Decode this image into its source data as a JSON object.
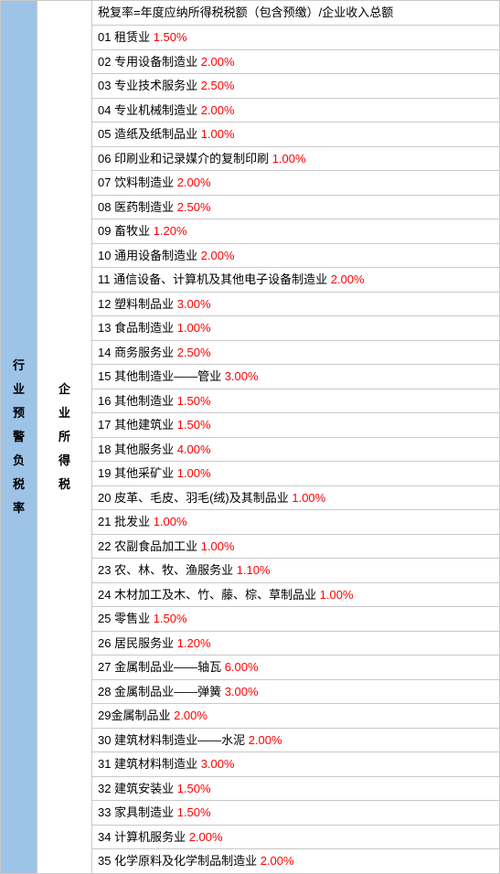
{
  "left_label": "行业预警负税率",
  "mid_label": "企业所得税",
  "header": "税复率=年度应纳所得税税额（包含预缴）/企业收入总额",
  "row_label_fontsize": 13,
  "vertical_label_fontsize": 13,
  "rate_color": "#ff0000",
  "text_color": "#000000",
  "left_bg": "#9dc3e6",
  "border_color": "#c9c9c9",
  "rows": [
    {
      "num": "01",
      "name": "租赁业",
      "rate": "1.50%"
    },
    {
      "num": "02",
      "name": "专用设备制造业",
      "rate": "2.00%"
    },
    {
      "num": "03",
      "name": "专业技术服务业",
      "rate": "2.50%"
    },
    {
      "num": "04",
      "name": "专业机械制造业",
      "rate": "2.00%"
    },
    {
      "num": "05",
      "name": "造纸及纸制品业",
      "rate": "1.00%"
    },
    {
      "num": "06",
      "name": "印刷业和记录媒介的复制印刷",
      "rate": "1.00%"
    },
    {
      "num": "07",
      "name": "饮料制造业",
      "rate": "2.00%"
    },
    {
      "num": "08",
      "name": "医药制造业",
      "rate": "2.50%"
    },
    {
      "num": "09",
      "name": "畜牧业",
      "rate": "1.20%"
    },
    {
      "num": "10",
      "name": "通用设备制造业",
      "rate": "2.00%"
    },
    {
      "num": "11",
      "name": "通信设备、计算机及其他电子设备制造业",
      "rate": "2.00%"
    },
    {
      "num": "12",
      "name": "塑料制品业",
      "rate": "3.00%"
    },
    {
      "num": "13",
      "name": "食品制造业",
      "rate": "1.00%"
    },
    {
      "num": "14",
      "name": "商务服务业",
      "rate": "2.50%"
    },
    {
      "num": "15",
      "name": "其他制造业——管业",
      "rate": "3.00%"
    },
    {
      "num": "16",
      "name": "其他制造业",
      "rate": "1.50%"
    },
    {
      "num": "17",
      "name": "其他建筑业",
      "rate": "1.50%"
    },
    {
      "num": "18",
      "name": "其他服务业",
      "rate": "4.00%"
    },
    {
      "num": "19",
      "name": "其他采矿业",
      "rate": "1.00%"
    },
    {
      "num": "20",
      "name": "皮革、毛皮、羽毛(绒)及其制品业",
      "rate": "1.00%"
    },
    {
      "num": "21",
      "name": "批发业",
      "rate": "1.00%"
    },
    {
      "num": "22",
      "name": "农副食品加工业",
      "rate": "1.00%"
    },
    {
      "num": "23",
      "name": "农、林、牧、渔服务业",
      "rate": "1.10%"
    },
    {
      "num": "24",
      "name": "木材加工及木、竹、藤、棕、草制品业",
      "rate": "1.00%"
    },
    {
      "num": "25",
      "name": "零售业",
      "rate": "1.50%"
    },
    {
      "num": "26",
      "name": "居民服务业",
      "rate": "1.20%"
    },
    {
      "num": "27",
      "name": "金属制品业——轴瓦",
      "rate": "6.00%"
    },
    {
      "num": "28",
      "name": "金属制品业——弹簧",
      "rate": "3.00%"
    },
    {
      "num": "29",
      "name": "金属制品业",
      "rate": "2.00%",
      "nospace": true
    },
    {
      "num": "30",
      "name": "建筑材料制造业——水泥",
      "rate": "2.00%"
    },
    {
      "num": "31",
      "name": "建筑材料制造业",
      "rate": "3.00%"
    },
    {
      "num": "32",
      "name": "建筑安装业",
      "rate": "1.50%"
    },
    {
      "num": "33",
      "name": "家具制造业",
      "rate": "1.50%"
    },
    {
      "num": "34",
      "name": "计算机服务业",
      "rate": "2.00%"
    },
    {
      "num": "35",
      "name": "化学原料及化学制品制造业",
      "rate": "2.00%"
    }
  ]
}
